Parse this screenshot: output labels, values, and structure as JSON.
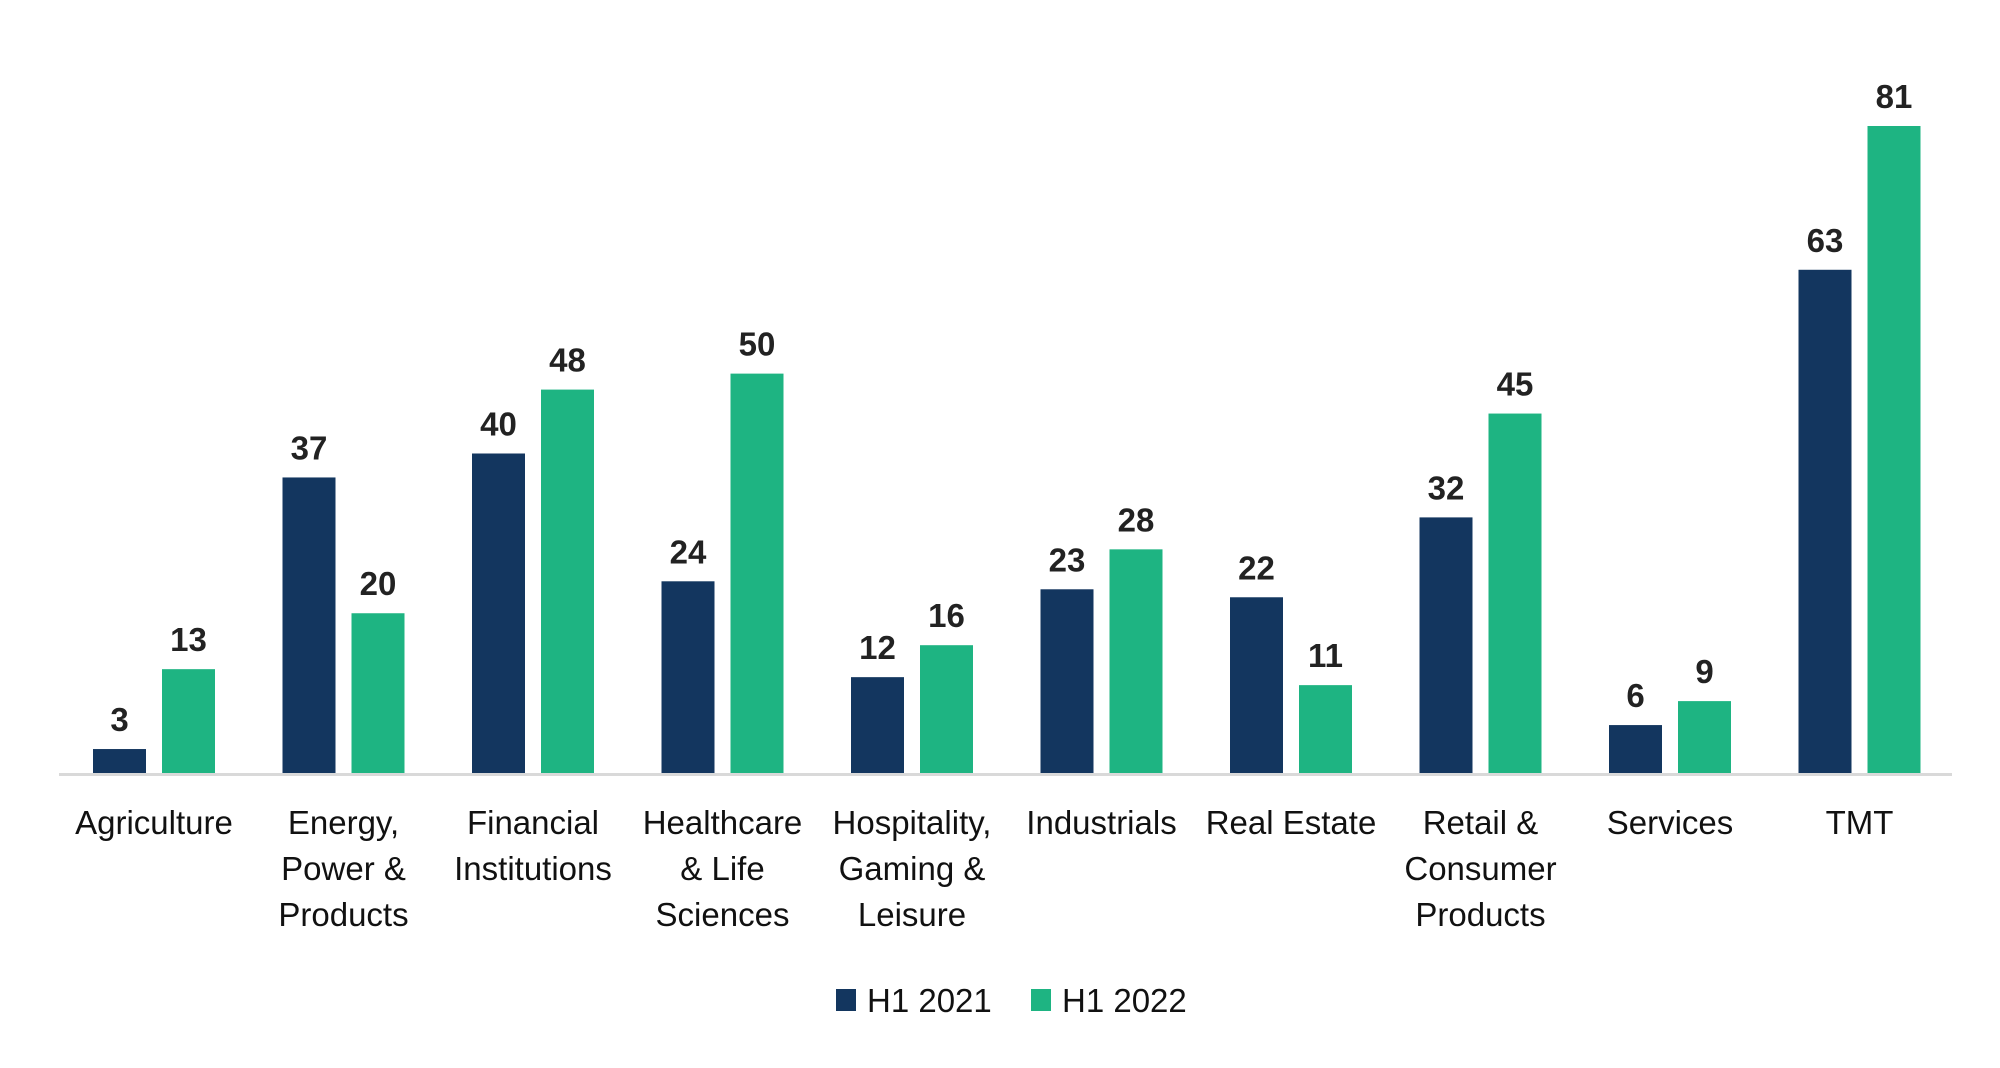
{
  "chart_data": {
    "type": "bar",
    "title": "",
    "xlabel": "",
    "ylabel": "",
    "ylim": [
      0,
      81
    ],
    "grid": false,
    "legend_position": "bottom",
    "categories": [
      [
        "Agriculture"
      ],
      [
        "Energy,",
        "Power &",
        "Products"
      ],
      [
        "Financial",
        "Institutions"
      ],
      [
        "Healthcare",
        "& Life",
        "Sciences"
      ],
      [
        "Hospitality,",
        "Gaming &",
        "Leisure"
      ],
      [
        "Industrials"
      ],
      [
        "Real Estate"
      ],
      [
        "Retail &",
        "Consumer",
        "Products"
      ],
      [
        "Services"
      ],
      [
        "TMT"
      ]
    ],
    "series": [
      {
        "name": "H1 2021",
        "color": "#13365F",
        "values": [
          3,
          37,
          40,
          24,
          12,
          23,
          22,
          32,
          6,
          63
        ]
      },
      {
        "name": "H1 2022",
        "color": "#1EB482",
        "values": [
          13,
          20,
          48,
          50,
          16,
          28,
          11,
          45,
          9,
          81
        ]
      }
    ],
    "axis_color": "#D9D9D9"
  }
}
